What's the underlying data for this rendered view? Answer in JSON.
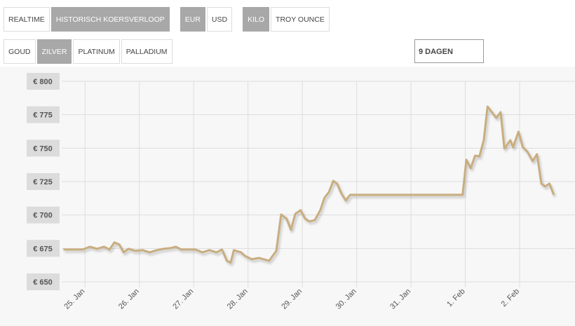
{
  "ui": {
    "row1": [
      [
        {
          "label": "REALTIME",
          "active": false
        },
        {
          "label": "HISTORISCH KOERSVERLOOP",
          "active": true
        }
      ],
      [
        {
          "label": "EUR",
          "active": true
        },
        {
          "label": "USD",
          "active": false
        }
      ],
      [
        {
          "label": "KILO",
          "active": true
        },
        {
          "label": "TROY OUNCE",
          "active": false
        }
      ]
    ],
    "row2": [
      [
        {
          "label": "GOUD",
          "active": false
        },
        {
          "label": "ZILVER",
          "active": true
        },
        {
          "label": "PLATINUM",
          "active": false
        },
        {
          "label": "PALLADIUM",
          "active": false
        }
      ]
    ],
    "range": "9 DAGEN"
  },
  "chart_data": {
    "type": "line",
    "color": "#c8ad7f",
    "grid": true,
    "xlim": [
      -0.43,
      9.02
    ],
    "xticks": [
      {
        "value": 0,
        "label": "25. Jan"
      },
      {
        "value": 1,
        "label": "26. Jan"
      },
      {
        "value": 2,
        "label": "27. Jan"
      },
      {
        "value": 3,
        "label": "28. Jan"
      },
      {
        "value": 4,
        "label": "29. Jan"
      },
      {
        "value": 5,
        "label": "30. Jan"
      },
      {
        "value": 6,
        "label": "31. Jan"
      },
      {
        "value": 7,
        "label": "1. Feb"
      },
      {
        "value": 8,
        "label": "2. Feb"
      }
    ],
    "ylim": [
      650,
      800
    ],
    "yticks": [
      {
        "value": 650,
        "label": "€ 650"
      },
      {
        "value": 675,
        "label": "€ 675"
      },
      {
        "value": 700,
        "label": "€ 700"
      },
      {
        "value": 725,
        "label": "€ 725"
      },
      {
        "value": 750,
        "label": "€ 750"
      },
      {
        "value": 775,
        "label": "€ 775"
      },
      {
        "value": 800,
        "label": "€ 800"
      }
    ],
    "x": [
      -0.4,
      -0.04,
      0.09,
      0.22,
      0.35,
      0.45,
      0.54,
      0.63,
      0.71,
      0.8,
      0.93,
      1.06,
      1.19,
      1.32,
      1.45,
      1.58,
      1.67,
      1.77,
      2.03,
      2.16,
      2.29,
      2.42,
      2.52,
      2.61,
      2.68,
      2.74,
      2.87,
      2.94,
      3.07,
      3.2,
      3.39,
      3.52,
      3.61,
      3.71,
      3.79,
      3.87,
      3.97,
      4.05,
      4.13,
      4.23,
      4.33,
      4.41,
      4.49,
      4.57,
      4.64,
      4.72,
      4.8,
      4.88,
      4.98,
      6.95,
      7.02,
      7.1,
      7.18,
      7.26,
      7.34,
      7.41,
      7.49,
      7.57,
      7.65,
      7.72,
      7.83,
      7.88,
      7.98,
      8.06,
      8.14,
      8.24,
      8.32,
      8.4,
      8.47,
      8.55,
      8.63
    ],
    "values": [
      674.2,
      674.2,
      676.3,
      674.7,
      676.3,
      674.2,
      679.5,
      677.9,
      672.1,
      674.7,
      673.2,
      673.7,
      672.1,
      673.7,
      674.7,
      675.3,
      676.3,
      674.2,
      674.2,
      672.1,
      673.7,
      672.1,
      674.2,
      665.8,
      664.3,
      673.7,
      672.1,
      669.5,
      666.9,
      667.9,
      665.8,
      673.2,
      700.4,
      697.3,
      688.9,
      700.9,
      703.6,
      697.3,
      695.2,
      696.2,
      703.6,
      713.0,
      717.2,
      725.6,
      723.5,
      716.1,
      710.9,
      715.1,
      715.1,
      715.1,
      741.3,
      735.0,
      744.4,
      743.9,
      756.0,
      781.1,
      776.9,
      772.7,
      776.9,
      749.7,
      756.0,
      750.7,
      762.3,
      750.7,
      747.6,
      740.3,
      745.5,
      723.5,
      721.4,
      723.5,
      715.1
    ]
  }
}
